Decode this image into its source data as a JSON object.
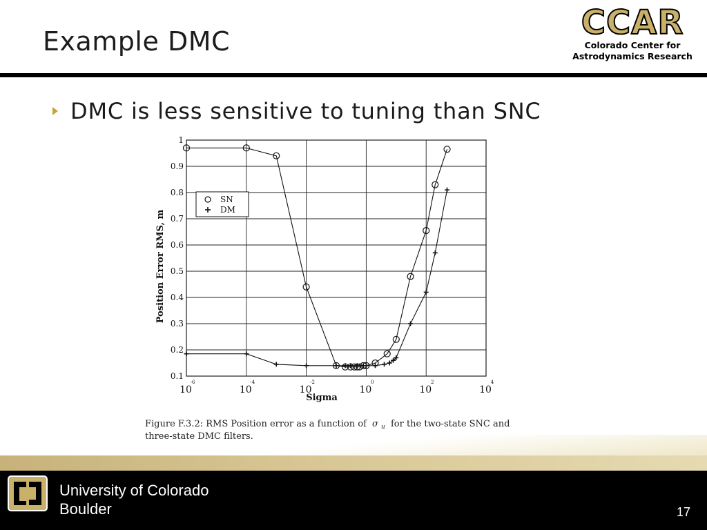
{
  "slide": {
    "title": "Example DMC",
    "bullet": "DMC is less sensitive to tuning than SNC",
    "logo": {
      "mark": "CCAR",
      "line1": "Colorado Center for",
      "line2": "Astrodynamics Research"
    },
    "footer": {
      "line1": "University of Colorado",
      "line2": "Boulder",
      "page": "17"
    }
  },
  "colors": {
    "accent_gold": "#c9b16a",
    "bullet_gold": "#c9a23c",
    "footer_black": "#000000"
  },
  "chart_data": {
    "type": "line",
    "title": "",
    "xlabel": "Sigma",
    "ylabel": "Position Error RMS, m",
    "xscale": "log",
    "xlim": [
      1e-06,
      10000.0
    ],
    "ylim": [
      0.1,
      1
    ],
    "grid": true,
    "legend_position": "upper-left",
    "x_ticks": [
      {
        "base": "10",
        "exp": "-6"
      },
      {
        "base": "10",
        "exp": "-4"
      },
      {
        "base": "10",
        "exp": "-2"
      },
      {
        "base": "10",
        "exp": "0"
      },
      {
        "base": "10",
        "exp": "2"
      },
      {
        "base": "10",
        "exp": "4"
      }
    ],
    "y_ticks": [
      "0.1",
      "0.2",
      "0.3",
      "0.4",
      "0.5",
      "0.6",
      "0.7",
      "0.8",
      "0.9",
      "1"
    ],
    "series": [
      {
        "name": "SN",
        "marker": "circle",
        "x": [
          1e-06,
          0.0001,
          0.001,
          0.01,
          0.1,
          0.2,
          0.3,
          0.4,
          0.5,
          0.6,
          0.8,
          1,
          2,
          5,
          10,
          30,
          100,
          200,
          500
        ],
        "y": [
          0.97,
          0.97,
          0.94,
          0.44,
          0.14,
          0.135,
          0.135,
          0.135,
          0.135,
          0.135,
          0.14,
          0.14,
          0.15,
          0.185,
          0.24,
          0.48,
          0.655,
          0.83,
          0.965
        ]
      },
      {
        "name": "DM",
        "marker": "plus",
        "x": [
          1e-06,
          0.0001,
          0.001,
          0.01,
          0.1,
          0.2,
          0.3,
          0.5,
          0.8,
          1,
          2,
          4,
          6,
          8,
          10,
          30,
          100,
          200,
          500
        ],
        "y": [
          0.185,
          0.185,
          0.145,
          0.14,
          0.14,
          0.14,
          0.14,
          0.14,
          0.14,
          0.14,
          0.14,
          0.145,
          0.15,
          0.16,
          0.17,
          0.3,
          0.42,
          0.57,
          0.81
        ]
      }
    ],
    "caption_line1": "Figure F.3.2: RMS Position error as a function of",
    "caption_sigma": "σ",
    "caption_sub": "u",
    "caption_line1_end": "for the two-state SNC and",
    "caption_line2": "three-state DMC filters."
  }
}
